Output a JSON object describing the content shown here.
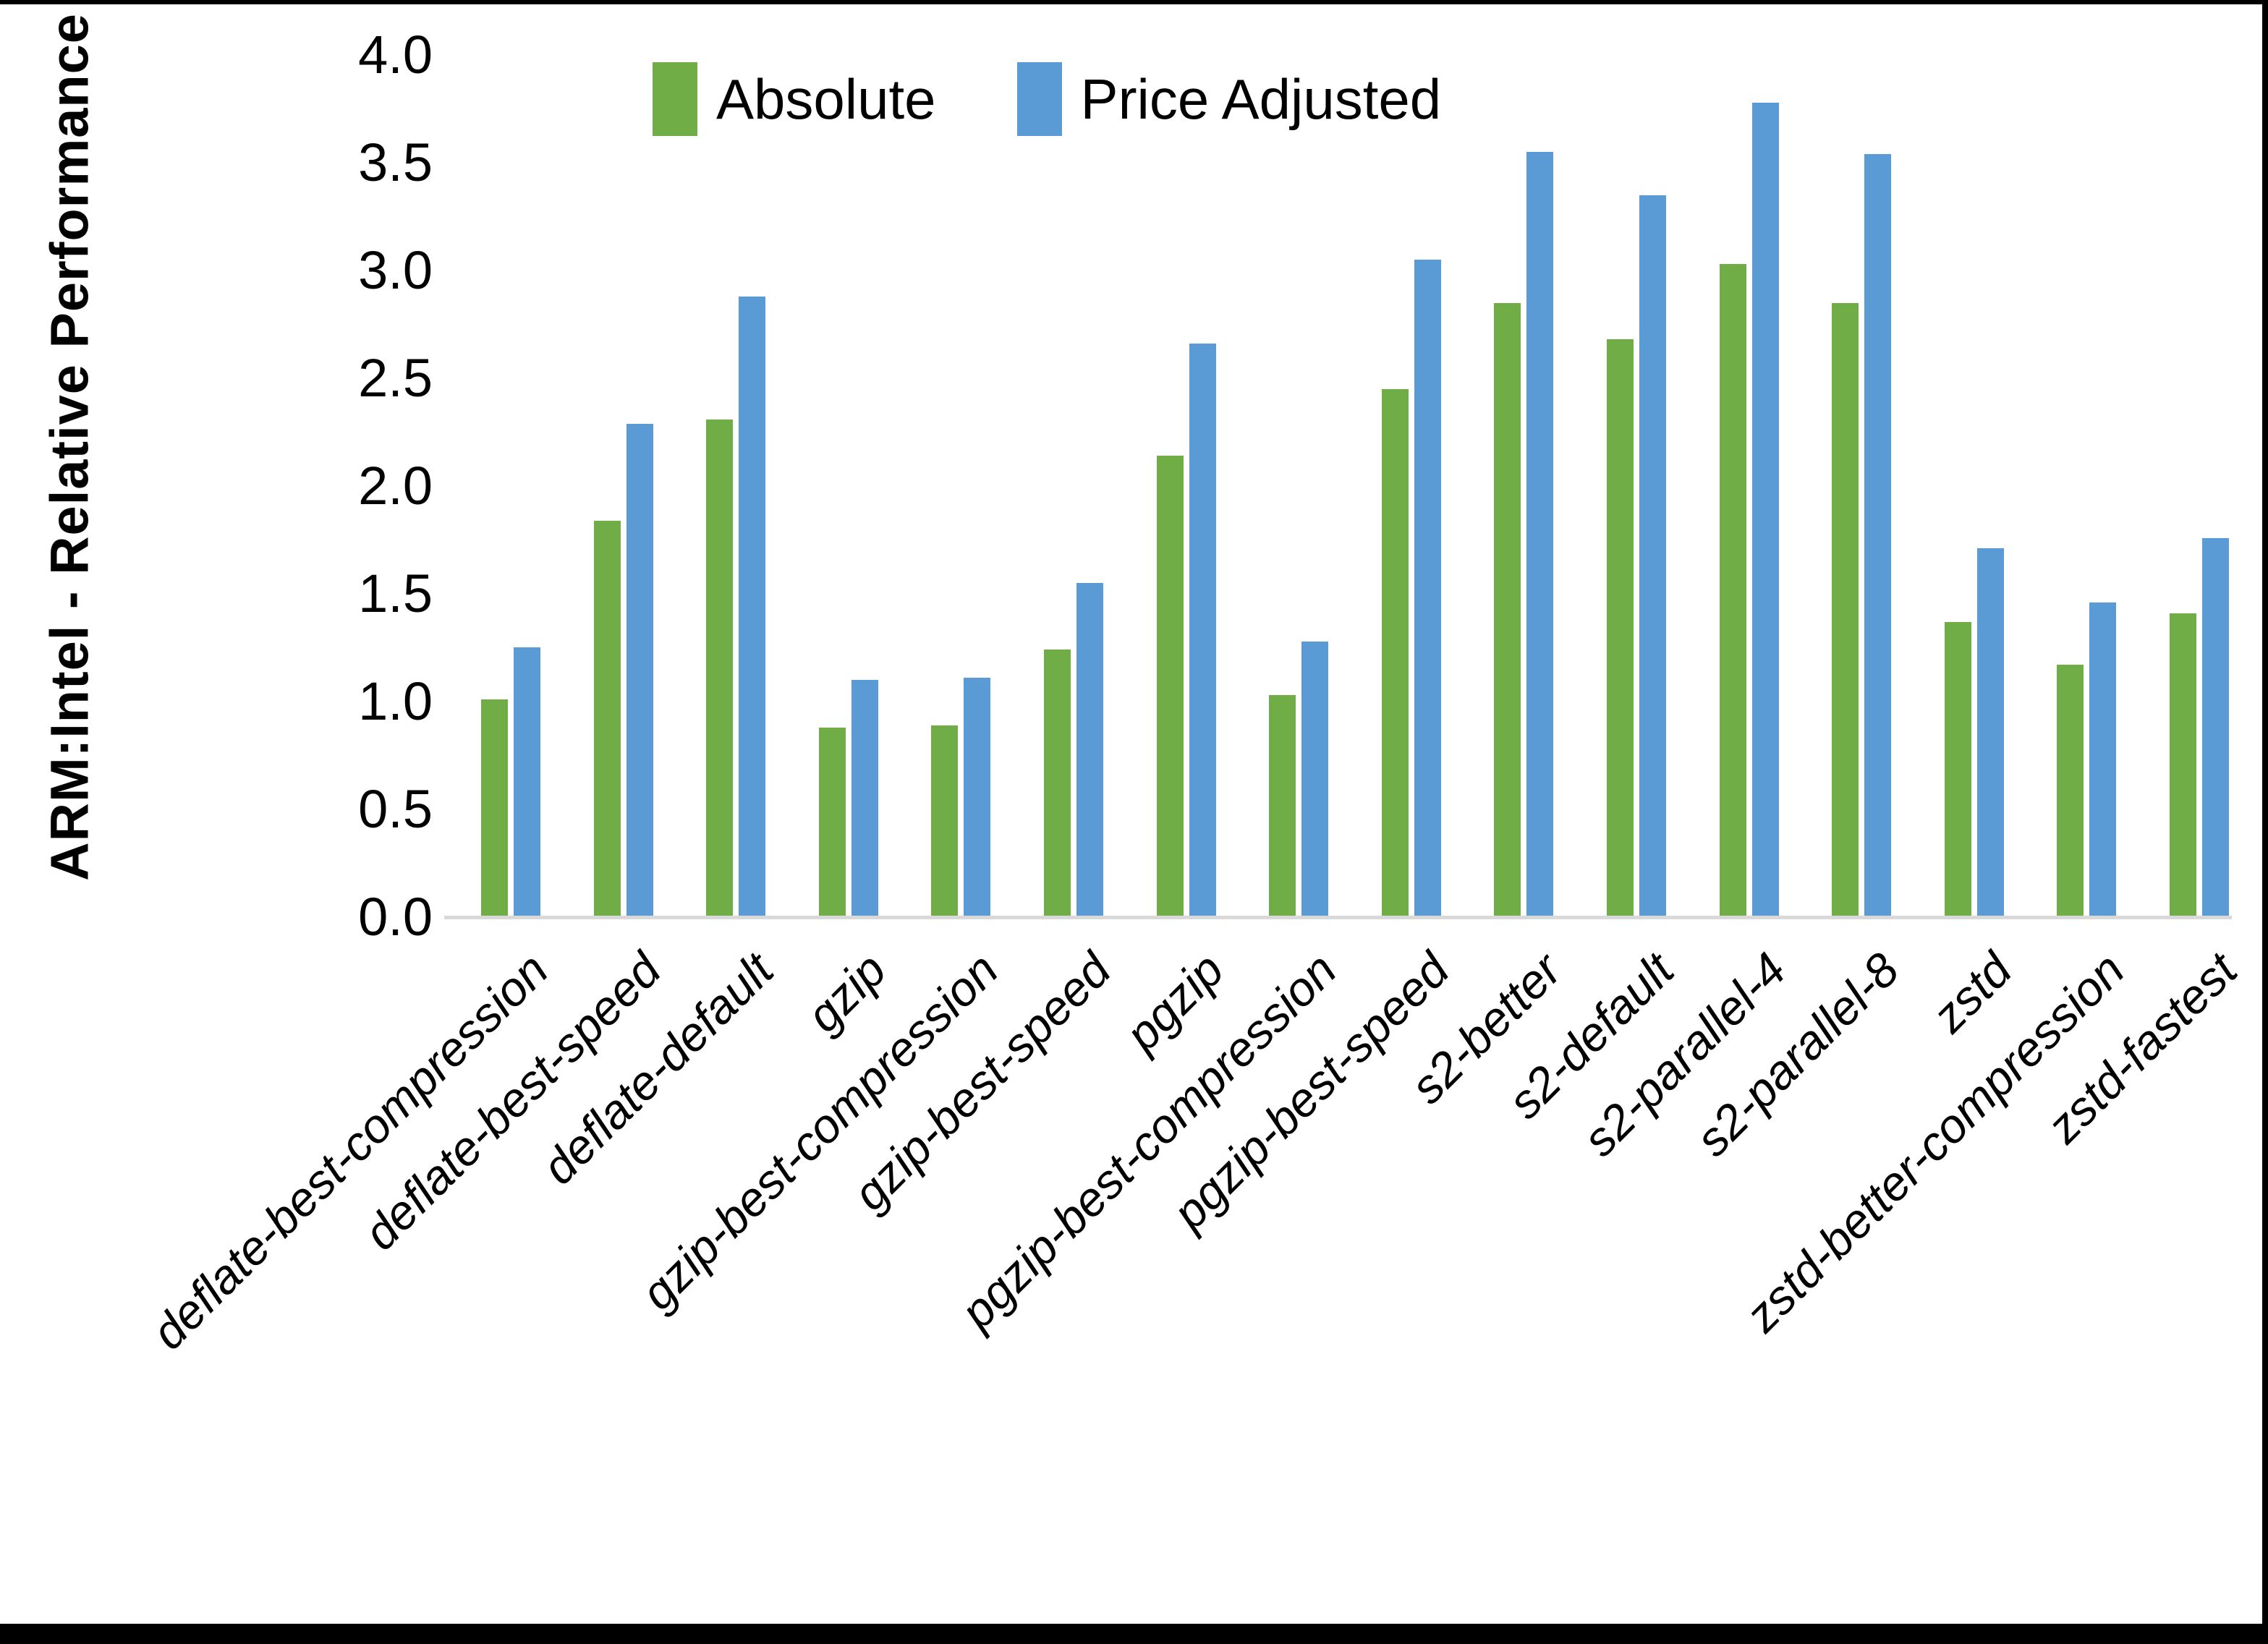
{
  "chart_data": {
    "type": "bar",
    "title": "",
    "xlabel": "",
    "ylabel": "ARM:Intel - Relative Performance",
    "ylim": [
      0.0,
      4.0
    ],
    "ytick_step": 0.5,
    "ytick_labels": [
      "0.0",
      "0.5",
      "1.0",
      "1.5",
      "2.0",
      "2.5",
      "3.0",
      "3.5",
      "4.0"
    ],
    "grid": false,
    "legend_position": "top-center",
    "axis_line_color": "#D9D9D9",
    "text_color": "#000000",
    "background_color": "#ffffff",
    "categories": [
      "deflate-best-compression",
      "deflate-best-speed",
      "deflate-default",
      "gzip",
      "gzip-best-compression",
      "gzip-best-speed",
      "pgzip",
      "pgzip-best-compression",
      "pgzip-best-speed",
      "s2-better",
      "s2-default",
      "s2-parallel-4",
      "s2-parallel-8",
      "zstd",
      "zstd-better-compression",
      "zstd-fastest"
    ],
    "series": [
      {
        "name": "Absolute",
        "color": "#70AD47",
        "values": [
          1.01,
          1.84,
          2.31,
          0.88,
          0.89,
          1.24,
          2.14,
          1.03,
          2.45,
          2.85,
          2.68,
          3.03,
          2.85,
          1.37,
          1.17,
          1.41
        ]
      },
      {
        "name": "Price Adjusted",
        "color": "#5B9BD5",
        "values": [
          1.25,
          2.29,
          2.88,
          1.1,
          1.11,
          1.55,
          2.66,
          1.28,
          3.05,
          3.55,
          3.35,
          3.78,
          3.54,
          1.71,
          1.46,
          1.76
        ]
      }
    ]
  }
}
